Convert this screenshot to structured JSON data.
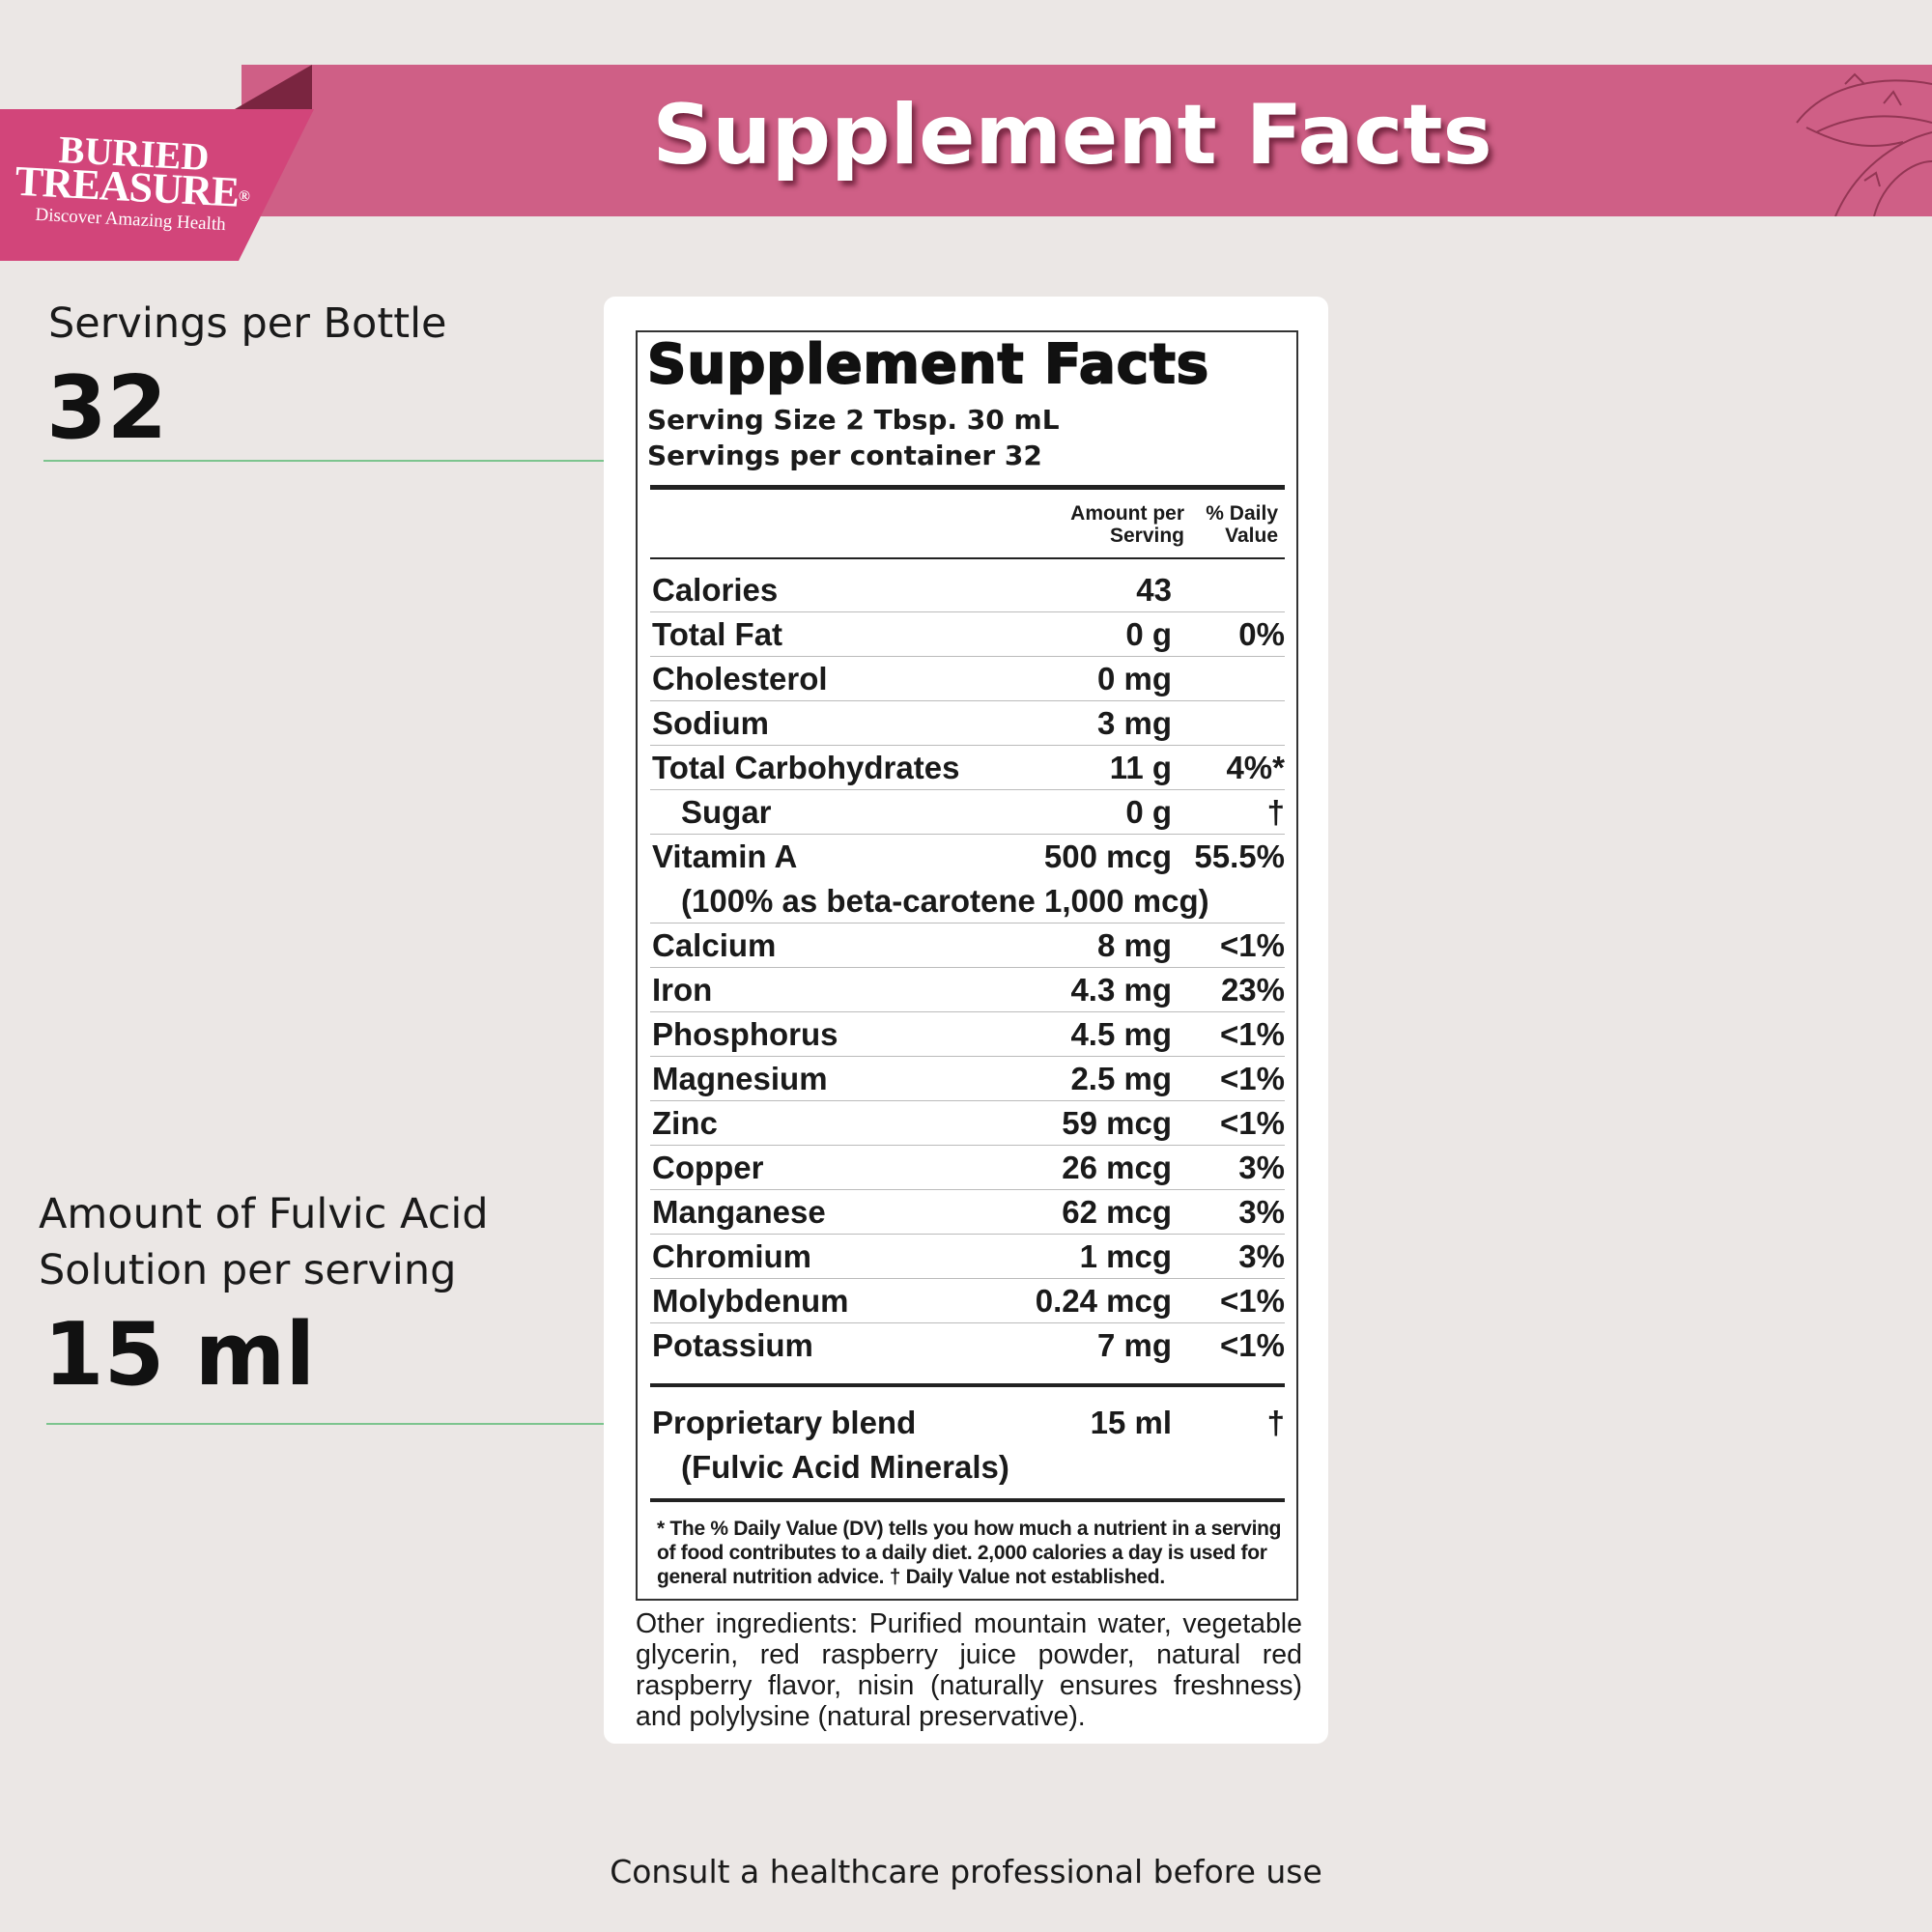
{
  "brand": {
    "line1": "BURIED",
    "line2": "TREASURE",
    "registered": "®",
    "tagline": "Discover Amazing Health",
    "colors": {
      "banner": "#cf5f86",
      "ribbon": "#d2457a",
      "fold": "#7a2540"
    }
  },
  "banner": {
    "title": "Supplement Facts"
  },
  "left": {
    "servings_label": "Servings per Bottle",
    "servings_value": "32",
    "fulvic_label_1": "Amount of Fulvic Acid",
    "fulvic_label_2": "Solution per serving",
    "fulvic_value": "15 ml"
  },
  "label": {
    "title": "Supplement Facts",
    "serving_size": "Serving Size 2 Tbsp. 30 mL",
    "servings_per_container": "Servings per container 32",
    "col_amount_1": "Amount per",
    "col_amount_2": "Serving",
    "col_dv_1": "% Daily",
    "col_dv_2": "Value",
    "rows": [
      {
        "name": "Calories",
        "amount": "43",
        "dv": ""
      },
      {
        "name": "Total Fat",
        "amount": "0 g",
        "dv": "0%"
      },
      {
        "name": "Cholesterol",
        "amount": "0 mg",
        "dv": ""
      },
      {
        "name": "Sodium",
        "amount": "3 mg",
        "dv": ""
      },
      {
        "name": "Total Carbohydrates",
        "amount": "11 g",
        "dv": "4%*"
      },
      {
        "name": "Sugar",
        "amount": "0 g",
        "dv": "†",
        "indent": true
      },
      {
        "name": "Vitamin A",
        "amount": "500 mcg",
        "dv": "55.5%",
        "nob": true
      },
      {
        "name": "(100% as beta-carotene 1,000 mcg)",
        "amount": "",
        "dv": "",
        "indent": true
      },
      {
        "name": "Calcium",
        "amount": "8 mg",
        "dv": "<1%"
      },
      {
        "name": "Iron",
        "amount": "4.3 mg",
        "dv": "23%"
      },
      {
        "name": "Phosphorus",
        "amount": "4.5 mg",
        "dv": "<1%"
      },
      {
        "name": "Magnesium",
        "amount": "2.5 mg",
        "dv": "<1%"
      },
      {
        "name": "Zinc",
        "amount": "59 mcg",
        "dv": "<1%"
      },
      {
        "name": "Copper",
        "amount": "26 mcg",
        "dv": "3%"
      },
      {
        "name": "Manganese",
        "amount": "62 mcg",
        "dv": "3%"
      },
      {
        "name": "Chromium",
        "amount": "1 mcg",
        "dv": "3%"
      },
      {
        "name": "Molybdenum",
        "amount": "0.24 mcg",
        "dv": "<1%"
      },
      {
        "name": "Potassium",
        "amount": "7 mg",
        "dv": "<1%",
        "nob": true
      }
    ],
    "blend": [
      {
        "name": "Proprietary blend",
        "amount": "15 ml",
        "dv": "†",
        "nob": true
      },
      {
        "name": "(Fulvic Acid Minerals)",
        "amount": "",
        "dv": "",
        "indent": true,
        "nob": true
      }
    ],
    "footnote": "* The % Daily Value (DV) tells you how much a nutrient in a serving of food contributes to a daily diet. 2,000 calories a day is used for general nutrition advice.   † Daily Value not established."
  },
  "other_ingredients": "Other ingredients: Purified mountain water, vegetable glycerin, red raspberry juice powder, natural red raspberry flavor, nisin (naturally ensures freshness) and polylysine (natural preservative).",
  "consult": "Consult a healthcare professional before use"
}
